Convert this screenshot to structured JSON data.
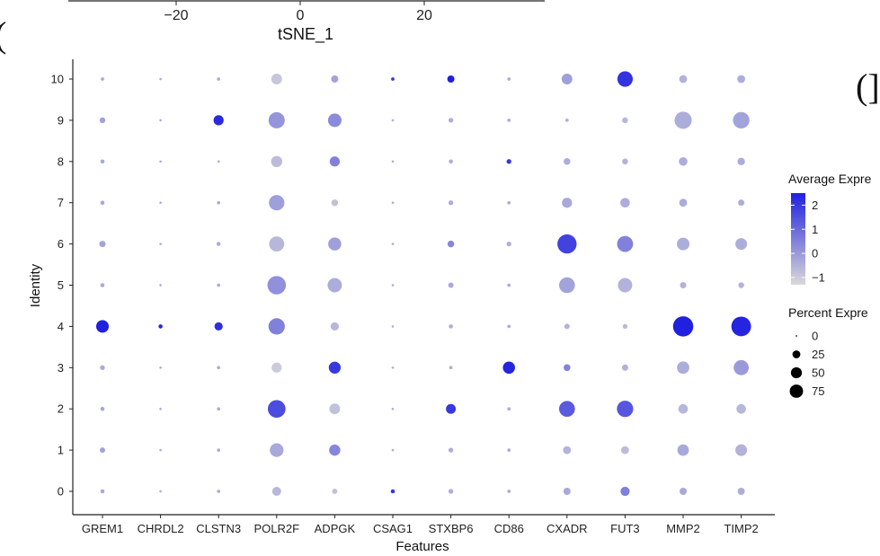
{
  "top_fragment": {
    "x_ticks": [
      "−20",
      "0",
      "20"
    ],
    "xlabel": "tSNE_1",
    "left_tag": "(",
    "right_tag": "(]"
  },
  "chart_data": {
    "type": "dot",
    "features": [
      "GREM1",
      "CHRDL2",
      "CLSTN3",
      "POLR2F",
      "ADPGK",
      "CSAG1",
      "STXBP6",
      "CD86",
      "CXADR",
      "FUT3",
      "MMP2",
      "TIMP2"
    ],
    "identities": [
      "0",
      "1",
      "2",
      "3",
      "4",
      "5",
      "6",
      "7",
      "8",
      "9",
      "10"
    ],
    "xlabel": "Features",
    "ylabel": "Identity",
    "color_legend": {
      "title": "Average Expre",
      "ticks": [
        "2",
        "1",
        "0",
        "−1"
      ],
      "range": [
        -1.3,
        2.5
      ],
      "low_color": "#d9d9d9",
      "high_color": "#2020e0"
    },
    "size_legend": {
      "title": "Percent Expre",
      "ticks": [
        "0",
        "25",
        "50",
        "75"
      ],
      "values": [
        0,
        25,
        50,
        75
      ]
    },
    "points": [
      {
        "feature": "GREM1",
        "identity": "0",
        "avg": -0.3,
        "pct": 3
      },
      {
        "feature": "GREM1",
        "identity": "1",
        "avg": -0.2,
        "pct": 5
      },
      {
        "feature": "GREM1",
        "identity": "2",
        "avg": -0.3,
        "pct": 3
      },
      {
        "feature": "GREM1",
        "identity": "3",
        "avg": -0.3,
        "pct": 4
      },
      {
        "feature": "GREM1",
        "identity": "4",
        "avg": 2.5,
        "pct": 28
      },
      {
        "feature": "GREM1",
        "identity": "5",
        "avg": -0.3,
        "pct": 3
      },
      {
        "feature": "GREM1",
        "identity": "6",
        "avg": -0.2,
        "pct": 7
      },
      {
        "feature": "GREM1",
        "identity": "7",
        "avg": -0.3,
        "pct": 3
      },
      {
        "feature": "GREM1",
        "identity": "8",
        "avg": -0.3,
        "pct": 3
      },
      {
        "feature": "GREM1",
        "identity": "9",
        "avg": -0.2,
        "pct": 6
      },
      {
        "feature": "GREM1",
        "identity": "10",
        "avg": -0.3,
        "pct": 2
      },
      {
        "feature": "CHRDL2",
        "identity": "0",
        "avg": -0.4,
        "pct": 1
      },
      {
        "feature": "CHRDL2",
        "identity": "1",
        "avg": -0.4,
        "pct": 1
      },
      {
        "feature": "CHRDL2",
        "identity": "2",
        "avg": -0.4,
        "pct": 1
      },
      {
        "feature": "CHRDL2",
        "identity": "3",
        "avg": -0.4,
        "pct": 1
      },
      {
        "feature": "CHRDL2",
        "identity": "4",
        "avg": 2.4,
        "pct": 3
      },
      {
        "feature": "CHRDL2",
        "identity": "5",
        "avg": -0.4,
        "pct": 1
      },
      {
        "feature": "CHRDL2",
        "identity": "6",
        "avg": -0.4,
        "pct": 1
      },
      {
        "feature": "CHRDL2",
        "identity": "7",
        "avg": -0.4,
        "pct": 1
      },
      {
        "feature": "CHRDL2",
        "identity": "8",
        "avg": -0.4,
        "pct": 1
      },
      {
        "feature": "CHRDL2",
        "identity": "9",
        "avg": -0.4,
        "pct": 1
      },
      {
        "feature": "CHRDL2",
        "identity": "10",
        "avg": -0.4,
        "pct": 1
      },
      {
        "feature": "CLSTN3",
        "identity": "0",
        "avg": -0.4,
        "pct": 2
      },
      {
        "feature": "CLSTN3",
        "identity": "1",
        "avg": -0.4,
        "pct": 2
      },
      {
        "feature": "CLSTN3",
        "identity": "2",
        "avg": -0.4,
        "pct": 2
      },
      {
        "feature": "CLSTN3",
        "identity": "3",
        "avg": -0.4,
        "pct": 2
      },
      {
        "feature": "CLSTN3",
        "identity": "4",
        "avg": 2.2,
        "pct": 12
      },
      {
        "feature": "CLSTN3",
        "identity": "5",
        "avg": -0.4,
        "pct": 2
      },
      {
        "feature": "CLSTN3",
        "identity": "6",
        "avg": -0.4,
        "pct": 3
      },
      {
        "feature": "CLSTN3",
        "identity": "7",
        "avg": -0.4,
        "pct": 2
      },
      {
        "feature": "CLSTN3",
        "identity": "8",
        "avg": -0.4,
        "pct": 1
      },
      {
        "feature": "CLSTN3",
        "identity": "9",
        "avg": 2.3,
        "pct": 18
      },
      {
        "feature": "CLSTN3",
        "identity": "10",
        "avg": -0.4,
        "pct": 2
      },
      {
        "feature": "POLR2F",
        "identity": "0",
        "avg": -0.6,
        "pct": 14
      },
      {
        "feature": "POLR2F",
        "identity": "1",
        "avg": -0.3,
        "pct": 33
      },
      {
        "feature": "POLR2F",
        "identity": "2",
        "avg": 1.6,
        "pct": 55
      },
      {
        "feature": "POLR2F",
        "identity": "3",
        "avg": -1.0,
        "pct": 18
      },
      {
        "feature": "POLR2F",
        "identity": "4",
        "avg": 0.5,
        "pct": 47
      },
      {
        "feature": "POLR2F",
        "identity": "5",
        "avg": 0.2,
        "pct": 60
      },
      {
        "feature": "POLR2F",
        "identity": "6",
        "avg": -0.6,
        "pct": 40
      },
      {
        "feature": "POLR2F",
        "identity": "7",
        "avg": -0.1,
        "pct": 42
      },
      {
        "feature": "POLR2F",
        "identity": "8",
        "avg": -0.7,
        "pct": 22
      },
      {
        "feature": "POLR2F",
        "identity": "9",
        "avg": 0.1,
        "pct": 46
      },
      {
        "feature": "POLR2F",
        "identity": "10",
        "avg": -0.9,
        "pct": 20
      },
      {
        "feature": "ADPGK",
        "identity": "0",
        "avg": -0.8,
        "pct": 5
      },
      {
        "feature": "ADPGK",
        "identity": "1",
        "avg": 0.4,
        "pct": 22
      },
      {
        "feature": "ADPGK",
        "identity": "2",
        "avg": -0.8,
        "pct": 20
      },
      {
        "feature": "ADPGK",
        "identity": "3",
        "avg": 2.0,
        "pct": 25
      },
      {
        "feature": "ADPGK",
        "identity": "4",
        "avg": -0.6,
        "pct": 12
      },
      {
        "feature": "ADPGK",
        "identity": "5",
        "avg": -0.4,
        "pct": 36
      },
      {
        "feature": "ADPGK",
        "identity": "6",
        "avg": -0.1,
        "pct": 30
      },
      {
        "feature": "ADPGK",
        "identity": "7",
        "avg": -0.8,
        "pct": 8
      },
      {
        "feature": "ADPGK",
        "identity": "8",
        "avg": 0.5,
        "pct": 18
      },
      {
        "feature": "ADPGK",
        "identity": "9",
        "avg": 0.3,
        "pct": 32
      },
      {
        "feature": "ADPGK",
        "identity": "10",
        "avg": -0.2,
        "pct": 9
      },
      {
        "feature": "CSAG1",
        "identity": "0",
        "avg": 2.0,
        "pct": 3
      },
      {
        "feature": "CSAG1",
        "identity": "1",
        "avg": -0.4,
        "pct": 1
      },
      {
        "feature": "CSAG1",
        "identity": "2",
        "avg": -0.4,
        "pct": 1
      },
      {
        "feature": "CSAG1",
        "identity": "3",
        "avg": -0.4,
        "pct": 1
      },
      {
        "feature": "CSAG1",
        "identity": "4",
        "avg": -0.4,
        "pct": 1
      },
      {
        "feature": "CSAG1",
        "identity": "5",
        "avg": -0.4,
        "pct": 1
      },
      {
        "feature": "CSAG1",
        "identity": "6",
        "avg": -0.4,
        "pct": 1
      },
      {
        "feature": "CSAG1",
        "identity": "7",
        "avg": -0.4,
        "pct": 1
      },
      {
        "feature": "CSAG1",
        "identity": "8",
        "avg": -0.4,
        "pct": 1
      },
      {
        "feature": "CSAG1",
        "identity": "9",
        "avg": -0.4,
        "pct": 1
      },
      {
        "feature": "CSAG1",
        "identity": "10",
        "avg": 2.0,
        "pct": 2
      },
      {
        "feature": "STXBP6",
        "identity": "0",
        "avg": -0.4,
        "pct": 4
      },
      {
        "feature": "STXBP6",
        "identity": "1",
        "avg": -0.4,
        "pct": 4
      },
      {
        "feature": "STXBP6",
        "identity": "2",
        "avg": 2.0,
        "pct": 17
      },
      {
        "feature": "STXBP6",
        "identity": "3",
        "avg": -0.4,
        "pct": 2
      },
      {
        "feature": "STXBP6",
        "identity": "4",
        "avg": -0.4,
        "pct": 3
      },
      {
        "feature": "STXBP6",
        "identity": "5",
        "avg": -0.3,
        "pct": 5
      },
      {
        "feature": "STXBP6",
        "identity": "6",
        "avg": 0.4,
        "pct": 8
      },
      {
        "feature": "STXBP6",
        "identity": "7",
        "avg": -0.4,
        "pct": 4
      },
      {
        "feature": "STXBP6",
        "identity": "8",
        "avg": -0.4,
        "pct": 3
      },
      {
        "feature": "STXBP6",
        "identity": "9",
        "avg": -0.4,
        "pct": 4
      },
      {
        "feature": "STXBP6",
        "identity": "10",
        "avg": 2.5,
        "pct": 9
      },
      {
        "feature": "CD86",
        "identity": "0",
        "avg": -0.4,
        "pct": 2
      },
      {
        "feature": "CD86",
        "identity": "1",
        "avg": -0.4,
        "pct": 2
      },
      {
        "feature": "CD86",
        "identity": "2",
        "avg": -0.4,
        "pct": 2
      },
      {
        "feature": "CD86",
        "identity": "3",
        "avg": 2.4,
        "pct": 26
      },
      {
        "feature": "CD86",
        "identity": "4",
        "avg": -0.4,
        "pct": 2
      },
      {
        "feature": "CD86",
        "identity": "5",
        "avg": -0.4,
        "pct": 2
      },
      {
        "feature": "CD86",
        "identity": "6",
        "avg": -0.4,
        "pct": 4
      },
      {
        "feature": "CD86",
        "identity": "7",
        "avg": -0.4,
        "pct": 2
      },
      {
        "feature": "CD86",
        "identity": "8",
        "avg": 2.0,
        "pct": 4
      },
      {
        "feature": "CD86",
        "identity": "9",
        "avg": -0.4,
        "pct": 2
      },
      {
        "feature": "CD86",
        "identity": "10",
        "avg": -0.4,
        "pct": 2
      },
      {
        "feature": "CXADR",
        "identity": "0",
        "avg": -0.3,
        "pct": 9
      },
      {
        "feature": "CXADR",
        "identity": "1",
        "avg": -0.5,
        "pct": 11
      },
      {
        "feature": "CXADR",
        "identity": "2",
        "avg": 1.3,
        "pct": 44
      },
      {
        "feature": "CXADR",
        "identity": "3",
        "avg": 0.5,
        "pct": 8
      },
      {
        "feature": "CXADR",
        "identity": "4",
        "avg": -0.5,
        "pct": 5
      },
      {
        "feature": "CXADR",
        "identity": "5",
        "avg": -0.2,
        "pct": 44
      },
      {
        "feature": "CXADR",
        "identity": "6",
        "avg": 1.8,
        "pct": 65
      },
      {
        "feature": "CXADR",
        "identity": "7",
        "avg": -0.3,
        "pct": 18
      },
      {
        "feature": "CXADR",
        "identity": "8",
        "avg": -0.4,
        "pct": 8
      },
      {
        "feature": "CXADR",
        "identity": "9",
        "avg": -0.5,
        "pct": 2
      },
      {
        "feature": "CXADR",
        "identity": "10",
        "avg": -0.1,
        "pct": 20
      },
      {
        "feature": "FUT3",
        "identity": "0",
        "avg": 0.5,
        "pct": 15
      },
      {
        "feature": "FUT3",
        "identity": "1",
        "avg": -0.7,
        "pct": 11
      },
      {
        "feature": "FUT3",
        "identity": "2",
        "avg": 1.4,
        "pct": 47
      },
      {
        "feature": "FUT3",
        "identity": "3",
        "avg": -0.5,
        "pct": 7
      },
      {
        "feature": "FUT3",
        "identity": "4",
        "avg": -0.6,
        "pct": 4
      },
      {
        "feature": "FUT3",
        "identity": "5",
        "avg": -0.5,
        "pct": 36
      },
      {
        "feature": "FUT3",
        "identity": "6",
        "avg": 0.5,
        "pct": 45
      },
      {
        "feature": "FUT3",
        "identity": "7",
        "avg": -0.4,
        "pct": 16
      },
      {
        "feature": "FUT3",
        "identity": "8",
        "avg": -0.5,
        "pct": 6
      },
      {
        "feature": "FUT3",
        "identity": "9",
        "avg": -0.6,
        "pct": 6
      },
      {
        "feature": "FUT3",
        "identity": "10",
        "avg": 2.1,
        "pct": 42
      },
      {
        "feature": "MMP2",
        "identity": "0",
        "avg": -0.3,
        "pct": 9
      },
      {
        "feature": "MMP2",
        "identity": "1",
        "avg": -0.3,
        "pct": 23
      },
      {
        "feature": "MMP2",
        "identity": "2",
        "avg": -0.6,
        "pct": 16
      },
      {
        "feature": "MMP2",
        "identity": "3",
        "avg": -0.4,
        "pct": 27
      },
      {
        "feature": "MMP2",
        "identity": "4",
        "avg": 2.5,
        "pct": 72
      },
      {
        "feature": "MMP2",
        "identity": "5",
        "avg": -0.5,
        "pct": 7
      },
      {
        "feature": "MMP2",
        "identity": "6",
        "avg": -0.4,
        "pct": 28
      },
      {
        "feature": "MMP2",
        "identity": "7",
        "avg": -0.4,
        "pct": 11
      },
      {
        "feature": "MMP2",
        "identity": "8",
        "avg": -0.4,
        "pct": 13
      },
      {
        "feature": "MMP2",
        "identity": "9",
        "avg": -0.4,
        "pct": 52
      },
      {
        "feature": "MMP2",
        "identity": "10",
        "avg": -0.5,
        "pct": 11
      },
      {
        "feature": "TIMP2",
        "identity": "0",
        "avg": -0.4,
        "pct": 9
      },
      {
        "feature": "TIMP2",
        "identity": "1",
        "avg": -0.5,
        "pct": 24
      },
      {
        "feature": "TIMP2",
        "identity": "2",
        "avg": -0.6,
        "pct": 16
      },
      {
        "feature": "TIMP2",
        "identity": "3",
        "avg": 0.0,
        "pct": 40
      },
      {
        "feature": "TIMP2",
        "identity": "4",
        "avg": 2.4,
        "pct": 68
      },
      {
        "feature": "TIMP2",
        "identity": "5",
        "avg": -0.5,
        "pct": 6
      },
      {
        "feature": "TIMP2",
        "identity": "6",
        "avg": -0.4,
        "pct": 24
      },
      {
        "feature": "TIMP2",
        "identity": "7",
        "avg": -0.4,
        "pct": 7
      },
      {
        "feature": "TIMP2",
        "identity": "8",
        "avg": -0.4,
        "pct": 10
      },
      {
        "feature": "TIMP2",
        "identity": "9",
        "avg": -0.2,
        "pct": 48
      },
      {
        "feature": "TIMP2",
        "identity": "10",
        "avg": -0.4,
        "pct": 11
      }
    ]
  }
}
